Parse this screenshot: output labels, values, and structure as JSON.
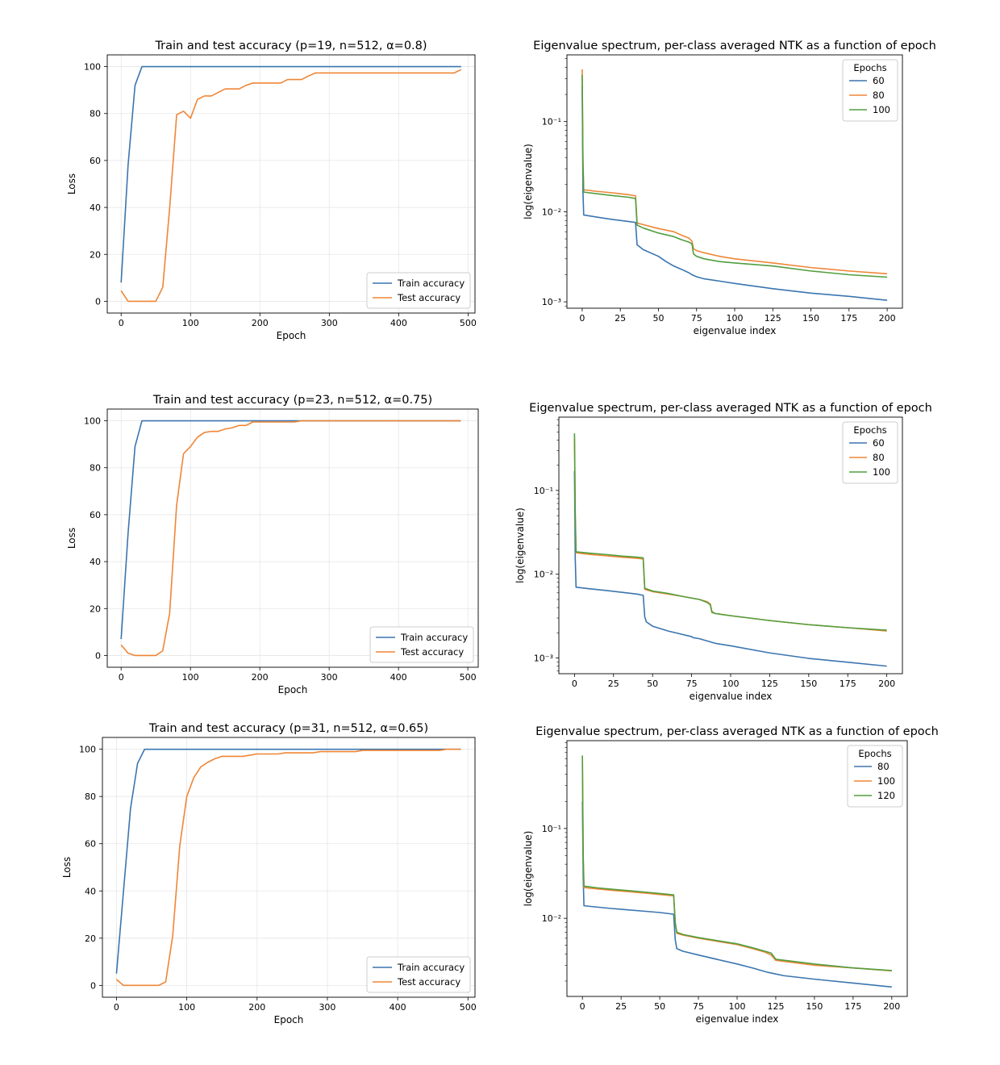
{
  "colors": {
    "blue": "#3b75af",
    "orange": "#ef8636",
    "green": "#519e3e",
    "grid": "#e6e6e6"
  },
  "chart_data": [
    {
      "type": "line",
      "title": "Train and test accuracy (p=19, n=512, α=0.8)",
      "xlabel": "Epoch",
      "ylabel": "Loss",
      "xlim": [
        -20,
        510
      ],
      "ylim": [
        -5,
        105
      ],
      "xticks": [
        0,
        100,
        200,
        300,
        400,
        500
      ],
      "yticks": [
        0,
        20,
        40,
        60,
        80,
        100
      ],
      "grid": true,
      "legend_position": "lower-right",
      "series": [
        {
          "name": "Train accuracy",
          "color": "#3b75af",
          "x": [
            0,
            10,
            20,
            30,
            40,
            490
          ],
          "y": [
            8,
            58,
            92,
            100,
            100,
            100
          ]
        },
        {
          "name": "Test accuracy",
          "color": "#ef8636",
          "x": [
            0,
            10,
            20,
            30,
            40,
            50,
            60,
            70,
            80,
            90,
            100,
            110,
            120,
            130,
            140,
            150,
            160,
            170,
            180,
            190,
            200,
            210,
            220,
            230,
            240,
            250,
            260,
            270,
            280,
            290,
            300,
            310,
            320,
            330,
            340,
            350,
            360,
            370,
            380,
            390,
            400,
            410,
            420,
            430,
            440,
            450,
            460,
            470,
            480,
            490
          ],
          "y": [
            4.5,
            0,
            0,
            0,
            0,
            0,
            6,
            40,
            79.5,
            81,
            78,
            86,
            87.5,
            87.5,
            89,
            90.5,
            90.5,
            90.5,
            92,
            93,
            93,
            93,
            93,
            93,
            94.5,
            94.5,
            94.5,
            96,
            97.3,
            97.3,
            97.3,
            97.3,
            97.3,
            97.3,
            97.3,
            97.3,
            97.3,
            97.3,
            97.3,
            97.3,
            97.3,
            97.3,
            97.3,
            97.3,
            97.3,
            97.3,
            97.3,
            97.3,
            97.3,
            98.7
          ]
        }
      ]
    },
    {
      "type": "line",
      "yscale": "log",
      "title": "Eigenvalue spectrum, per-class averaged NTK as a function of epoch",
      "xlabel": "eigenvalue index",
      "ylabel": "log(eigenvalue)",
      "xlim": [
        -10,
        210
      ],
      "ylim": [
        0.00085,
        0.55
      ],
      "xticks": [
        0,
        25,
        50,
        75,
        100,
        125,
        150,
        175,
        200
      ],
      "ytick_values": [
        0.001,
        0.01,
        0.1
      ],
      "ytick_labels": [
        "10⁻³",
        "10⁻²",
        "10⁻¹"
      ],
      "grid": false,
      "legend_title": "Epochs",
      "legend_position": "top-right",
      "series": [
        {
          "name": "60",
          "color": "#3b75af",
          "x": [
            0,
            0.5,
            1,
            10,
            20,
            30,
            35,
            36,
            40,
            50,
            55,
            60,
            65,
            70,
            72,
            75,
            80,
            90,
            100,
            125,
            150,
            175,
            200
          ],
          "y": [
            0.25,
            0.017,
            0.0092,
            0.0087,
            0.0082,
            0.0078,
            0.0076,
            0.0043,
            0.0038,
            0.0032,
            0.0028,
            0.0025,
            0.0023,
            0.0021,
            0.002,
            0.0019,
            0.0018,
            0.0017,
            0.0016,
            0.0014,
            0.00125,
            0.00115,
            0.00104
          ]
        },
        {
          "name": "80",
          "color": "#ef8636",
          "x": [
            0,
            0.5,
            1,
            10,
            20,
            30,
            35,
            36,
            40,
            50,
            60,
            65,
            70,
            72,
            73,
            75,
            80,
            90,
            100,
            125,
            150,
            175,
            200
          ],
          "y": [
            0.38,
            0.04,
            0.0175,
            0.0168,
            0.0162,
            0.0155,
            0.015,
            0.0075,
            0.0072,
            0.0065,
            0.006,
            0.0055,
            0.0051,
            0.0047,
            0.0039,
            0.0037,
            0.0035,
            0.0032,
            0.003,
            0.0027,
            0.0024,
            0.0022,
            0.00205
          ]
        },
        {
          "name": "100",
          "color": "#519e3e",
          "x": [
            0,
            0.5,
            1,
            10,
            20,
            30,
            35,
            36,
            40,
            50,
            60,
            65,
            70,
            72,
            73,
            75,
            80,
            90,
            100,
            125,
            150,
            175,
            200
          ],
          "y": [
            0.33,
            0.035,
            0.0165,
            0.0158,
            0.0151,
            0.0145,
            0.014,
            0.0071,
            0.0066,
            0.0058,
            0.0053,
            0.0049,
            0.0046,
            0.0044,
            0.0034,
            0.0032,
            0.003,
            0.0028,
            0.0027,
            0.0025,
            0.0022,
            0.002,
            0.00188
          ]
        }
      ]
    },
    {
      "type": "line",
      "title": "Train and test accuracy (p=23, n=512, α=0.75)",
      "xlabel": "Epoch",
      "ylabel": "Loss",
      "xlim": [
        -20,
        515
      ],
      "ylim": [
        -5,
        105
      ],
      "xticks": [
        0,
        100,
        200,
        300,
        400,
        500
      ],
      "yticks": [
        0,
        20,
        40,
        60,
        80,
        100
      ],
      "grid": true,
      "legend_position": "lower-right",
      "series": [
        {
          "name": "Train accuracy",
          "color": "#3b75af",
          "x": [
            0,
            10,
            20,
            30,
            40,
            490
          ],
          "y": [
            7,
            52,
            89,
            100,
            100,
            100
          ]
        },
        {
          "name": "Test accuracy",
          "color": "#ef8636",
          "x": [
            0,
            10,
            20,
            30,
            40,
            50,
            60,
            70,
            80,
            90,
            100,
            110,
            120,
            130,
            140,
            150,
            160,
            170,
            180,
            190,
            200,
            210,
            220,
            230,
            240,
            250,
            260,
            270,
            490
          ],
          "y": [
            4.5,
            1,
            0,
            0,
            0,
            0,
            2,
            18,
            64,
            86,
            89,
            93,
            95,
            95.5,
            95.5,
            96.5,
            97,
            98,
            98,
            99.5,
            99.5,
            99.5,
            99.5,
            99.5,
            99.5,
            99.5,
            100,
            100,
            100
          ]
        }
      ]
    },
    {
      "type": "line",
      "yscale": "log",
      "title": "Eigenvalue spectrum, per-class averaged NTK as a function of epoch",
      "xlabel": "eigenvalue index",
      "ylabel": "log(eigenvalue)",
      "xlim": [
        -10,
        210
      ],
      "ylim": [
        0.00065,
        0.75
      ],
      "xticks": [
        0,
        25,
        50,
        75,
        100,
        125,
        150,
        175,
        200
      ],
      "ytick_values": [
        0.001,
        0.01,
        0.1
      ],
      "ytick_labels": [
        "10⁻³",
        "10⁻²",
        "10⁻¹"
      ],
      "grid": false,
      "legend_title": "Epochs",
      "legend_position": "top-right",
      "series": [
        {
          "name": "60",
          "color": "#3b75af",
          "x": [
            0,
            0.5,
            1,
            10,
            20,
            30,
            40,
            44,
            45,
            46,
            50,
            60,
            75,
            76,
            80,
            90,
            100,
            125,
            150,
            175,
            200
          ],
          "y": [
            0.17,
            0.015,
            0.007,
            0.0067,
            0.0064,
            0.0061,
            0.0058,
            0.0056,
            0.0031,
            0.0027,
            0.0024,
            0.0021,
            0.0018,
            0.00175,
            0.0017,
            0.0015,
            0.0014,
            0.00115,
            0.00099,
            0.00089,
            0.0008
          ]
        },
        {
          "name": "80",
          "color": "#ef8636",
          "x": [
            0,
            0.5,
            1,
            10,
            20,
            30,
            40,
            44,
            45,
            50,
            60,
            70,
            80,
            85,
            87,
            88,
            90,
            100,
            125,
            150,
            175,
            200
          ],
          "y": [
            0.42,
            0.05,
            0.018,
            0.0172,
            0.0166,
            0.016,
            0.0155,
            0.0152,
            0.0066,
            0.0062,
            0.0058,
            0.0054,
            0.005,
            0.0047,
            0.0044,
            0.0036,
            0.0034,
            0.0032,
            0.0028,
            0.0025,
            0.0023,
            0.0021
          ]
        },
        {
          "name": "100",
          "color": "#519e3e",
          "x": [
            0,
            0.5,
            1,
            10,
            20,
            30,
            40,
            44,
            45,
            50,
            60,
            70,
            80,
            85,
            87,
            88,
            90,
            100,
            125,
            150,
            175,
            200
          ],
          "y": [
            0.48,
            0.05,
            0.0185,
            0.0178,
            0.0172,
            0.0165,
            0.016,
            0.0157,
            0.0068,
            0.0063,
            0.0059,
            0.0054,
            0.005,
            0.0046,
            0.0043,
            0.0035,
            0.0034,
            0.0032,
            0.0028,
            0.0025,
            0.0023,
            0.00215
          ]
        }
      ]
    },
    {
      "type": "line",
      "title": "Train and test accuracy (p=31, n=512, α=0.65)",
      "xlabel": "Epoch",
      "ylabel": "Loss",
      "xlim": [
        -20,
        510
      ],
      "ylim": [
        -5,
        105
      ],
      "xticks": [
        0,
        100,
        200,
        300,
        400,
        500
      ],
      "yticks": [
        0,
        20,
        40,
        60,
        80,
        100
      ],
      "grid": true,
      "legend_position": "lower-right",
      "series": [
        {
          "name": "Train accuracy",
          "color": "#3b75af",
          "x": [
            0,
            10,
            20,
            30,
            40,
            490
          ],
          "y": [
            5,
            40,
            75,
            94,
            100,
            100
          ]
        },
        {
          "name": "Test accuracy",
          "color": "#ef8636",
          "x": [
            0,
            10,
            20,
            30,
            40,
            50,
            60,
            70,
            80,
            90,
            100,
            110,
            120,
            130,
            140,
            150,
            160,
            170,
            180,
            190,
            200,
            210,
            220,
            230,
            240,
            250,
            260,
            270,
            280,
            290,
            300,
            310,
            320,
            330,
            340,
            350,
            360,
            370,
            380,
            390,
            400,
            410,
            420,
            430,
            440,
            450,
            460,
            470,
            480,
            490
          ],
          "y": [
            2.5,
            0,
            0,
            0,
            0,
            0,
            0,
            1.5,
            21,
            59,
            80,
            88,
            92.5,
            94.5,
            96,
            97,
            97,
            97,
            97,
            97.5,
            98,
            98,
            98,
            98,
            98.5,
            98.5,
            98.5,
            98.5,
            98.5,
            99,
            99,
            99,
            99,
            99,
            99,
            99.5,
            99.5,
            99.5,
            99.5,
            99.5,
            99.5,
            99.5,
            99.5,
            99.5,
            99.5,
            99.5,
            99.5,
            100,
            100,
            100
          ]
        }
      ]
    },
    {
      "type": "line",
      "yscale": "log",
      "title": "Eigenvalue spectrum, per-class averaged NTK as a function of epoch",
      "xlabel": "eigenvalue index",
      "ylabel": "log(eigenvalue)",
      "xlim": [
        -10,
        210
      ],
      "ylim": [
        0.00135,
        0.95
      ],
      "xticks": [
        0,
        25,
        50,
        75,
        100,
        125,
        150,
        175,
        200
      ],
      "ytick_values": [
        0.01,
        0.1
      ],
      "ytick_labels": [
        "10⁻²",
        "10⁻¹"
      ],
      "grid": false,
      "legend_title": "Epochs",
      "legend_position": "top-right",
      "series": [
        {
          "name": "80",
          "color": "#3b75af",
          "x": [
            0,
            0.5,
            1,
            10,
            20,
            30,
            40,
            50,
            59,
            60,
            61,
            65,
            75,
            100,
            110,
            120,
            125,
            130,
            150,
            175,
            200
          ],
          "y": [
            0.2,
            0.03,
            0.0138,
            0.0133,
            0.0128,
            0.0124,
            0.012,
            0.0116,
            0.0111,
            0.0058,
            0.0046,
            0.0043,
            0.0039,
            0.0031,
            0.0028,
            0.0025,
            0.0024,
            0.0023,
            0.0021,
            0.0019,
            0.00172
          ]
        },
        {
          "name": "100",
          "color": "#ef8636",
          "x": [
            0,
            0.5,
            1,
            10,
            20,
            30,
            40,
            50,
            59,
            60,
            61,
            65,
            75,
            100,
            110,
            118,
            122,
            125,
            150,
            175,
            200
          ],
          "y": [
            0.55,
            0.05,
            0.022,
            0.0212,
            0.0204,
            0.0198,
            0.0191,
            0.0184,
            0.0178,
            0.009,
            0.0068,
            0.0065,
            0.006,
            0.0051,
            0.0046,
            0.0042,
            0.0039,
            0.0034,
            0.003,
            0.0028,
            0.0026
          ]
        },
        {
          "name": "120",
          "color": "#519e3e",
          "x": [
            0,
            0.5,
            1,
            10,
            20,
            30,
            40,
            50,
            59,
            60,
            61,
            65,
            75,
            100,
            110,
            118,
            122,
            125,
            150,
            175,
            200
          ],
          "y": [
            0.65,
            0.05,
            0.0228,
            0.0218,
            0.021,
            0.0203,
            0.0196,
            0.0189,
            0.0182,
            0.009,
            0.007,
            0.0066,
            0.0061,
            0.0052,
            0.0047,
            0.0043,
            0.0041,
            0.0035,
            0.0031,
            0.0028,
            0.00262
          ]
        }
      ]
    }
  ]
}
